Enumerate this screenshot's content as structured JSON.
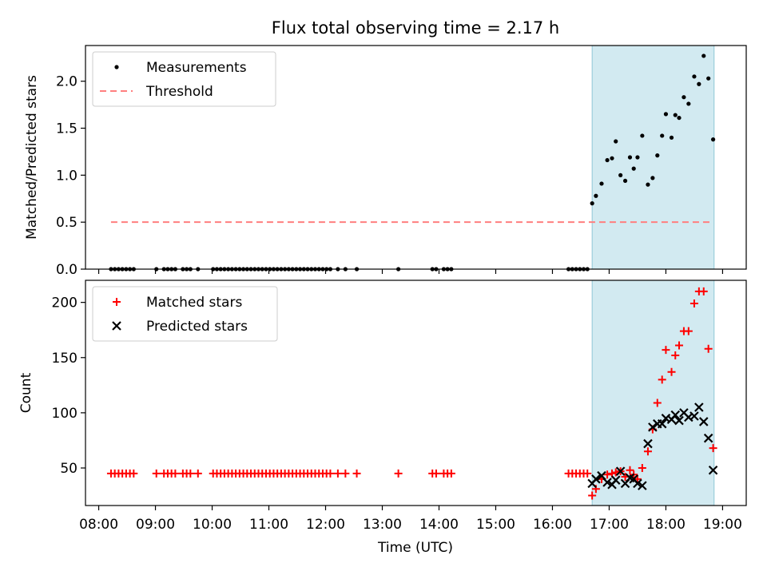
{
  "chart_data": [
    {
      "type": "scatter",
      "title": "Flux total observing time = 2.17 h",
      "xlabel": "",
      "ylabel": "Matched/Predicted stars",
      "xlim": [
        "07:46",
        "19:25"
      ],
      "ylim": [
        0,
        2.38
      ],
      "yticks": [
        0.0,
        0.5,
        1.0,
        1.5,
        2.0
      ],
      "ytick_labels": [
        "0.0",
        "0.5",
        "1.0",
        "1.5",
        "2.0"
      ],
      "grid": false,
      "legend_position": "upper-left",
      "shaded_interval": {
        "x": [
          "16:42",
          "18:51"
        ],
        "color": "#add8e6"
      },
      "series": [
        {
          "name": "Measurements",
          "marker": "dot",
          "color": "#000000",
          "points": [
            [
              "08:13",
              0
            ],
            [
              "08:17",
              0
            ],
            [
              "08:21",
              0
            ],
            [
              "08:25",
              0
            ],
            [
              "08:29",
              0
            ],
            [
              "08:33",
              0
            ],
            [
              "08:37",
              0
            ],
            [
              "09:01",
              0
            ],
            [
              "09:09",
              0
            ],
            [
              "09:13",
              0
            ],
            [
              "09:17",
              0
            ],
            [
              "09:21",
              0
            ],
            [
              "09:29",
              0
            ],
            [
              "09:33",
              0
            ],
            [
              "09:37",
              0
            ],
            [
              "09:45",
              0
            ],
            [
              "10:01",
              0
            ],
            [
              "10:05",
              0
            ],
            [
              "10:09",
              0
            ],
            [
              "10:13",
              0
            ],
            [
              "10:17",
              0
            ],
            [
              "10:21",
              0
            ],
            [
              "10:25",
              0
            ],
            [
              "10:29",
              0
            ],
            [
              "10:33",
              0
            ],
            [
              "10:37",
              0
            ],
            [
              "10:41",
              0
            ],
            [
              "10:45",
              0
            ],
            [
              "10:49",
              0
            ],
            [
              "10:53",
              0
            ],
            [
              "10:57",
              0
            ],
            [
              "11:01",
              0
            ],
            [
              "11:05",
              0
            ],
            [
              "11:09",
              0
            ],
            [
              "11:13",
              0
            ],
            [
              "11:17",
              0
            ],
            [
              "11:21",
              0
            ],
            [
              "11:25",
              0
            ],
            [
              "11:29",
              0
            ],
            [
              "11:33",
              0
            ],
            [
              "11:37",
              0
            ],
            [
              "11:41",
              0
            ],
            [
              "11:45",
              0
            ],
            [
              "11:49",
              0
            ],
            [
              "11:53",
              0
            ],
            [
              "11:57",
              0
            ],
            [
              "12:01",
              0
            ],
            [
              "12:05",
              0
            ],
            [
              "12:13",
              0
            ],
            [
              "12:21",
              0
            ],
            [
              "12:33",
              0
            ],
            [
              "13:17",
              0
            ],
            [
              "13:53",
              0
            ],
            [
              "13:57",
              0
            ],
            [
              "14:05",
              0
            ],
            [
              "14:09",
              0
            ],
            [
              "14:13",
              0
            ],
            [
              "16:17",
              0
            ],
            [
              "16:21",
              0
            ],
            [
              "16:25",
              0
            ],
            [
              "16:29",
              0
            ],
            [
              "16:33",
              0
            ],
            [
              "16:37",
              0
            ],
            [
              "16:42",
              0.7
            ],
            [
              "16:46",
              0.78
            ],
            [
              "16:52",
              0.91
            ],
            [
              "16:58",
              1.16
            ],
            [
              "17:03",
              1.18
            ],
            [
              "17:07",
              1.36
            ],
            [
              "17:12",
              1.0
            ],
            [
              "17:17",
              0.94
            ],
            [
              "17:22",
              1.19
            ],
            [
              "17:26",
              1.07
            ],
            [
              "17:30",
              1.19
            ],
            [
              "17:35",
              1.42
            ],
            [
              "17:41",
              0.9
            ],
            [
              "17:46",
              0.97
            ],
            [
              "17:51",
              1.21
            ],
            [
              "17:56",
              1.42
            ],
            [
              "18:00",
              1.65
            ],
            [
              "18:06",
              1.4
            ],
            [
              "18:10",
              1.64
            ],
            [
              "18:14",
              1.61
            ],
            [
              "18:19",
              1.83
            ],
            [
              "18:24",
              1.76
            ],
            [
              "18:30",
              2.05
            ],
            [
              "18:35",
              1.97
            ],
            [
              "18:40",
              2.27
            ],
            [
              "18:45",
              2.03
            ],
            [
              "18:50",
              1.38
            ]
          ]
        },
        {
          "name": "Threshold",
          "marker": "dashed-line",
          "color": "#ff7f7f",
          "x": [
            "08:13",
            "18:50"
          ],
          "y": [
            0.5,
            0.5
          ]
        }
      ]
    },
    {
      "type": "scatter",
      "title": "",
      "xlabel": "Time (UTC)",
      "ylabel": "Count",
      "xlim": [
        "07:46",
        "19:25"
      ],
      "ylim": [
        16,
        220
      ],
      "yticks": [
        50,
        100,
        150,
        200
      ],
      "ytick_labels": [
        "50",
        "100",
        "150",
        "200"
      ],
      "xtick_labels": [
        "08:00",
        "09:00",
        "10:00",
        "11:00",
        "12:00",
        "13:00",
        "14:00",
        "15:00",
        "16:00",
        "17:00",
        "18:00",
        "19:00"
      ],
      "grid": false,
      "legend_position": "upper-left",
      "shaded_interval": {
        "x": [
          "16:42",
          "18:51"
        ],
        "color": "#add8e6"
      },
      "series": [
        {
          "name": "Matched stars",
          "marker": "plus",
          "color": "#ff0000",
          "points": [
            [
              "08:13",
              45
            ],
            [
              "08:17",
              45
            ],
            [
              "08:21",
              45
            ],
            [
              "08:25",
              45
            ],
            [
              "08:29",
              45
            ],
            [
              "08:33",
              45
            ],
            [
              "08:37",
              45
            ],
            [
              "09:01",
              45
            ],
            [
              "09:09",
              45
            ],
            [
              "09:13",
              45
            ],
            [
              "09:17",
              45
            ],
            [
              "09:21",
              45
            ],
            [
              "09:29",
              45
            ],
            [
              "09:33",
              45
            ],
            [
              "09:37",
              45
            ],
            [
              "09:45",
              45
            ],
            [
              "10:01",
              45
            ],
            [
              "10:05",
              45
            ],
            [
              "10:09",
              45
            ],
            [
              "10:13",
              45
            ],
            [
              "10:17",
              45
            ],
            [
              "10:21",
              45
            ],
            [
              "10:25",
              45
            ],
            [
              "10:29",
              45
            ],
            [
              "10:33",
              45
            ],
            [
              "10:37",
              45
            ],
            [
              "10:41",
              45
            ],
            [
              "10:45",
              45
            ],
            [
              "10:49",
              45
            ],
            [
              "10:53",
              45
            ],
            [
              "10:57",
              45
            ],
            [
              "11:01",
              45
            ],
            [
              "11:05",
              45
            ],
            [
              "11:09",
              45
            ],
            [
              "11:13",
              45
            ],
            [
              "11:17",
              45
            ],
            [
              "11:21",
              45
            ],
            [
              "11:25",
              45
            ],
            [
              "11:29",
              45
            ],
            [
              "11:33",
              45
            ],
            [
              "11:37",
              45
            ],
            [
              "11:41",
              45
            ],
            [
              "11:45",
              45
            ],
            [
              "11:49",
              45
            ],
            [
              "11:53",
              45
            ],
            [
              "11:57",
              45
            ],
            [
              "12:01",
              45
            ],
            [
              "12:05",
              45
            ],
            [
              "12:13",
              45
            ],
            [
              "12:21",
              45
            ],
            [
              "12:33",
              45
            ],
            [
              "13:17",
              45
            ],
            [
              "13:53",
              45
            ],
            [
              "13:57",
              45
            ],
            [
              "14:05",
              45
            ],
            [
              "14:09",
              45
            ],
            [
              "14:13",
              45
            ],
            [
              "16:17",
              45
            ],
            [
              "16:21",
              45
            ],
            [
              "16:25",
              45
            ],
            [
              "16:29",
              45
            ],
            [
              "16:33",
              45
            ],
            [
              "16:37",
              45
            ],
            [
              "16:42",
              25
            ],
            [
              "16:46",
              31
            ],
            [
              "16:52",
              40
            ],
            [
              "16:58",
              44
            ],
            [
              "17:03",
              45
            ],
            [
              "17:07",
              46
            ],
            [
              "17:12",
              47
            ],
            [
              "17:17",
              42
            ],
            [
              "17:22",
              48
            ],
            [
              "17:26",
              44
            ],
            [
              "17:30",
              40
            ],
            [
              "17:35",
              50
            ],
            [
              "17:41",
              65
            ],
            [
              "17:46",
              85
            ],
            [
              "17:51",
              109
            ],
            [
              "17:56",
              130
            ],
            [
              "18:00",
              157
            ],
            [
              "18:06",
              137
            ],
            [
              "18:10",
              152
            ],
            [
              "18:14",
              161
            ],
            [
              "18:19",
              174
            ],
            [
              "18:24",
              174
            ],
            [
              "18:30",
              199
            ],
            [
              "18:35",
              210
            ],
            [
              "18:40",
              210
            ],
            [
              "18:45",
              158
            ],
            [
              "18:50",
              68
            ]
          ]
        },
        {
          "name": "Predicted stars",
          "marker": "x",
          "color": "#000000",
          "points": [
            [
              "16:42",
              36
            ],
            [
              "16:46",
              40
            ],
            [
              "16:52",
              43
            ],
            [
              "16:58",
              37
            ],
            [
              "17:03",
              35
            ],
            [
              "17:07",
              39
            ],
            [
              "17:12",
              47
            ],
            [
              "17:17",
              36
            ],
            [
              "17:22",
              41
            ],
            [
              "17:26",
              40
            ],
            [
              "17:30",
              36
            ],
            [
              "17:35",
              34
            ],
            [
              "17:41",
              72
            ],
            [
              "17:46",
              87
            ],
            [
              "17:51",
              90
            ],
            [
              "17:56",
              90
            ],
            [
              "18:00",
              95
            ],
            [
              "18:06",
              94
            ],
            [
              "18:10",
              98
            ],
            [
              "18:14",
              93
            ],
            [
              "18:19",
              100
            ],
            [
              "18:24",
              96
            ],
            [
              "18:30",
              97
            ],
            [
              "18:35",
              105
            ],
            [
              "18:40",
              92
            ],
            [
              "18:45",
              77
            ],
            [
              "18:50",
              48
            ]
          ]
        }
      ]
    }
  ]
}
